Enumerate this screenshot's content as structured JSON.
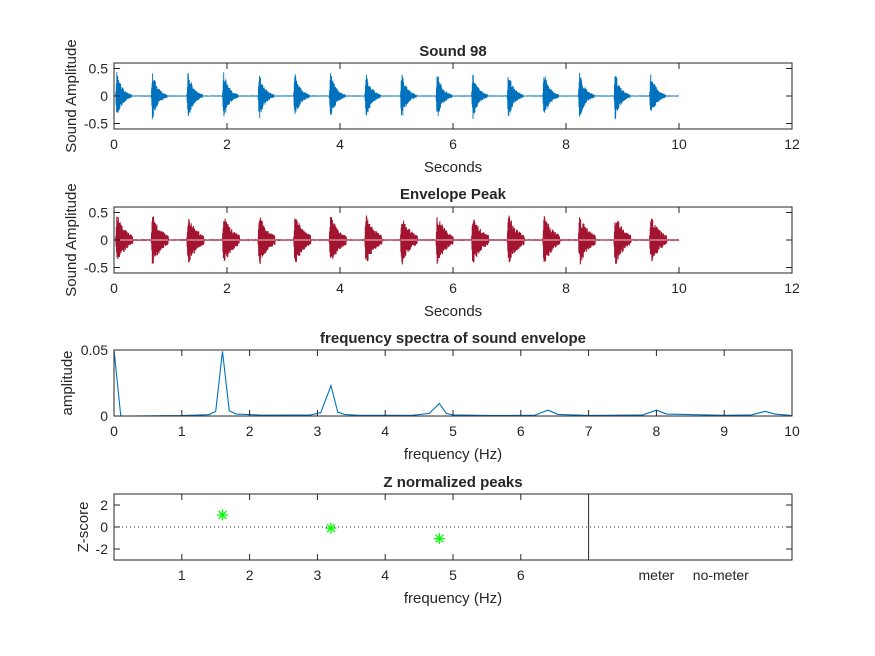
{
  "chart_data": [
    {
      "type": "line",
      "title": "Sound 98",
      "xlabel": "Seconds",
      "ylabel": "Sound Amplitude",
      "xlim": [
        0,
        12
      ],
      "ylim": [
        -0.6,
        0.6
      ],
      "xticks": [
        0,
        2,
        4,
        6,
        8,
        10,
        12
      ],
      "yticks": [
        -0.5,
        0,
        0.5
      ],
      "xtick_labels": [
        "0",
        "2",
        "4",
        "6",
        "8",
        "10",
        "12"
      ],
      "ytick_labels": [
        "-0.5",
        "0",
        "0.5"
      ],
      "color": "#0072BD",
      "signal": {
        "duration": 10,
        "burst_onsets": [
          0.03,
          0.66,
          1.29,
          1.92,
          2.55,
          3.18,
          3.81,
          4.44,
          5.07,
          5.7,
          6.33,
          6.96,
          7.59,
          8.22,
          8.85,
          9.48
        ],
        "burst_length": 0.28,
        "peak_amplitude": 0.55
      }
    },
    {
      "type": "line",
      "title": "Envelope Peak",
      "xlabel": "Seconds",
      "ylabel": "Sound Amplitude",
      "xlim": [
        0,
        12
      ],
      "ylim": [
        -0.6,
        0.6
      ],
      "xticks": [
        0,
        2,
        4,
        6,
        8,
        10,
        12
      ],
      "yticks": [
        -0.5,
        0,
        0.5
      ],
      "xtick_labels": [
        "0",
        "2",
        "4",
        "6",
        "8",
        "10",
        "12"
      ],
      "ytick_labels": [
        "-0.5",
        "0",
        "0.5"
      ],
      "color": "#A2142F",
      "signal": {
        "duration": 10,
        "burst_onsets": [
          0.03,
          0.66,
          1.29,
          1.92,
          2.55,
          3.18,
          3.81,
          4.44,
          5.07,
          5.7,
          6.33,
          6.96,
          7.59,
          8.22,
          8.85,
          9.48
        ],
        "burst_length": 0.3,
        "peak_amplitude": 0.55
      }
    },
    {
      "type": "line",
      "title": "frequency spectra of sound envelope",
      "xlabel": "frequency (Hz)",
      "ylabel": "amplitude",
      "xlim": [
        0,
        10
      ],
      "ylim": [
        0,
        0.05
      ],
      "xticks": [
        0,
        1,
        2,
        3,
        4,
        5,
        6,
        7,
        8,
        9,
        10
      ],
      "yticks": [
        0,
        0.05
      ],
      "xtick_labels": [
        "0",
        "1",
        "2",
        "3",
        "4",
        "5",
        "6",
        "7",
        "8",
        "9",
        "10"
      ],
      "ytick_labels": [
        "0",
        "0.05"
      ],
      "color": "#0072BD",
      "x": [
        0,
        0.1,
        0.2,
        1.0,
        1.4,
        1.5,
        1.6,
        1.7,
        1.8,
        2.2,
        2.9,
        3.05,
        3.2,
        3.3,
        3.4,
        3.6,
        4.4,
        4.65,
        4.8,
        4.9,
        5.0,
        5.5,
        6.2,
        6.4,
        6.55,
        7.0,
        7.8,
        8.0,
        8.15,
        9.0,
        9.4,
        9.6,
        9.75,
        10.0
      ],
      "y": [
        0.05,
        0.0,
        0.0,
        0.0003,
        0.001,
        0.0035,
        0.049,
        0.004,
        0.0015,
        0.0006,
        0.0008,
        0.0025,
        0.023,
        0.003,
        0.0012,
        0.0005,
        0.0005,
        0.002,
        0.0095,
        0.002,
        0.0008,
        0.0004,
        0.0005,
        0.0045,
        0.0012,
        0.0004,
        0.0008,
        0.0045,
        0.0015,
        0.0005,
        0.0008,
        0.0035,
        0.0015,
        0.0003
      ]
    },
    {
      "type": "scatter",
      "title": "Z normalized peaks",
      "xlabel": "frequency (Hz)",
      "ylabel": "Z-score",
      "xlim": [
        0,
        10
      ],
      "ylim": [
        -3,
        3
      ],
      "xticks": [
        1,
        2,
        3,
        4,
        5,
        6
      ],
      "yticks": [
        -2,
        0,
        2
      ],
      "xtick_labels": [
        "1",
        "2",
        "3",
        "4",
        "5",
        "6"
      ],
      "ytick_labels": [
        "-2",
        "0",
        "2"
      ],
      "category_labels": [
        "meter",
        "no-meter"
      ],
      "category_positions": [
        8.0,
        8.95
      ],
      "divider_x": 7,
      "zero_line": true,
      "color": "#00FF00",
      "x": [
        1.6,
        3.2,
        4.8
      ],
      "y": [
        1.1,
        -0.1,
        -1.05
      ]
    }
  ]
}
